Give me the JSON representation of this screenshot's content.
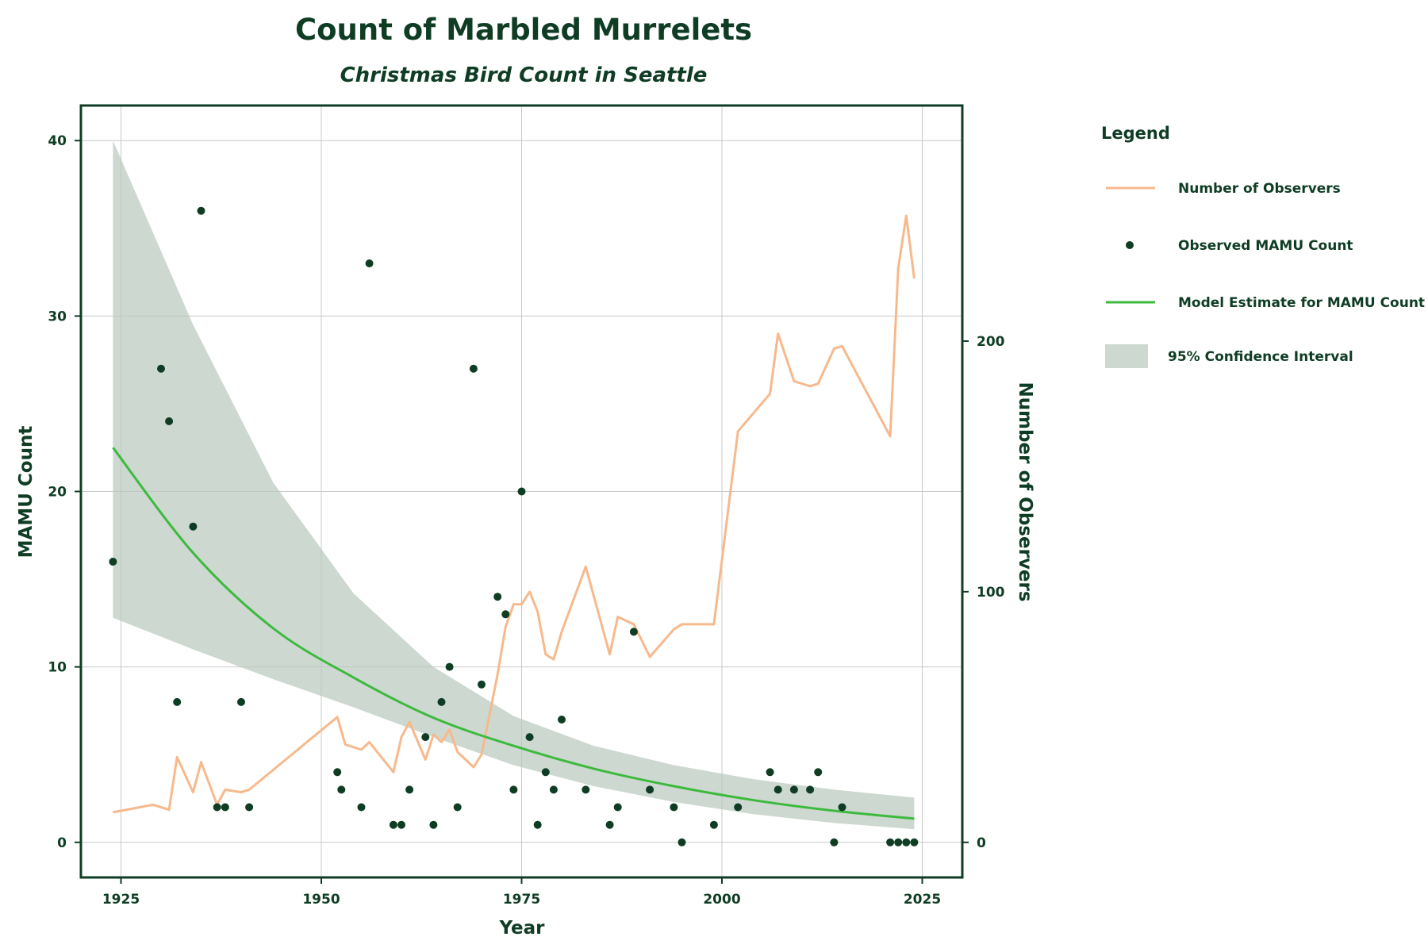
{
  "chart_data": {
    "type": "scatter",
    "title": "Count of Marbled Murrelets",
    "subtitle": "Christmas Bird Count in Seattle",
    "xlabel": "Year",
    "ylabel": "MAMU Count",
    "y2label": "Number of Observers",
    "xlim": [
      1920,
      2030
    ],
    "ylim": [
      -2,
      42
    ],
    "y2lim": [
      -14,
      294
    ],
    "xticks": [
      1925,
      1950,
      1975,
      2000,
      2025
    ],
    "yticks": [
      0,
      10,
      20,
      30,
      40
    ],
    "y2ticks": [
      0,
      100,
      200
    ],
    "grid": true,
    "legend": {
      "title": "Legend",
      "placement": "right",
      "entries": [
        {
          "label": "Number of Observers",
          "kind": "line",
          "color": "#f7b98c"
        },
        {
          "label": "Observed MAMU Count",
          "kind": "point",
          "color": "#0f3d24"
        },
        {
          "label": "Model Estimate for MAMU Count",
          "kind": "line",
          "color": "#3dba3d"
        },
        {
          "label": "95% Confidence Interval",
          "kind": "band",
          "color": "#b8c8be"
        }
      ]
    },
    "colors": {
      "observers": "#f7b98c",
      "points": "#0f3d24",
      "model": "#3dba3d",
      "ci": "#b8c8be",
      "axis": "#0f3d24"
    },
    "series": [
      {
        "name": "Observed MAMU Count",
        "type": "scatter",
        "axis": "left",
        "x": [
          1924,
          1930,
          1931,
          1932,
          1934,
          1935,
          1937,
          1938,
          1940,
          1941,
          1952,
          1952.5,
          1955,
          1956,
          1959,
          1960,
          1961,
          1963,
          1964,
          1965,
          1966,
          1967,
          1969,
          1970,
          1972,
          1973,
          1974,
          1975,
          1976,
          1977,
          1978,
          1979,
          1980,
          1983,
          1986,
          1987,
          1989,
          1991,
          1994,
          1995,
          1999,
          2002,
          2006,
          2007,
          2009,
          2011,
          2012,
          2014,
          2015,
          2021,
          2022,
          2023,
          2024
        ],
        "y": [
          16,
          27,
          24,
          8,
          18,
          36,
          2,
          2,
          8,
          2,
          4,
          3,
          2,
          33,
          1,
          1,
          3,
          6,
          1,
          8,
          10,
          2,
          27,
          9,
          14,
          13,
          3,
          20,
          6,
          1,
          4,
          3,
          7,
          3,
          1,
          2,
          12,
          3,
          2,
          0,
          1,
          2,
          4,
          3,
          3,
          3,
          4,
          0,
          2,
          0,
          0,
          0,
          0
        ]
      },
      {
        "name": "Number of Observers",
        "type": "line",
        "axis": "right",
        "x": [
          1924,
          1929,
          1931,
          1932,
          1934,
          1935,
          1937,
          1938,
          1940,
          1941,
          1952,
          1953,
          1955,
          1956,
          1959,
          1960,
          1961,
          1963,
          1964,
          1965,
          1966,
          1967,
          1969,
          1970,
          1972,
          1973,
          1974,
          1975,
          1976,
          1977,
          1978,
          1979,
          1980,
          1983,
          1986,
          1987,
          1989,
          1991,
          1994,
          1995,
          1999,
          2002,
          2006,
          2007,
          2009,
          2011,
          2012,
          2014,
          2015,
          2021,
          2022,
          2023,
          2024
        ],
        "y": [
          12,
          15,
          13,
          34,
          20,
          32,
          15,
          21,
          20,
          21,
          50,
          39,
          37,
          40,
          28,
          42,
          48,
          33,
          43,
          40,
          45,
          36,
          30,
          35,
          67,
          86,
          95,
          95,
          100,
          92,
          75,
          73,
          84,
          110,
          75,
          90,
          87,
          74,
          85,
          87,
          87,
          164,
          179,
          203,
          184,
          182,
          183,
          197,
          198,
          162,
          229,
          250,
          225
        ]
      },
      {
        "name": "Model Estimate for MAMU Count",
        "type": "line",
        "axis": "left",
        "x": [
          1924,
          1934,
          1944,
          1954,
          1964,
          1974,
          1984,
          1994,
          2004,
          2014,
          2024
        ],
        "y": [
          22.5,
          16.5,
          12.2,
          9.4,
          7.1,
          5.5,
          4.2,
          3.2,
          2.4,
          1.8,
          1.35
        ]
      },
      {
        "name": "95% Confidence Interval",
        "type": "area",
        "axis": "left",
        "x": [
          1924,
          1934,
          1944,
          1954,
          1964,
          1974,
          1984,
          1994,
          2004,
          2014,
          2024
        ],
        "lower": [
          12.8,
          11.0,
          9.3,
          7.7,
          6.0,
          4.4,
          3.2,
          2.3,
          1.6,
          1.1,
          0.75
        ],
        "upper": [
          40.0,
          29.5,
          20.5,
          14.2,
          10.0,
          7.2,
          5.5,
          4.4,
          3.6,
          3.0,
          2.55
        ]
      }
    ]
  }
}
